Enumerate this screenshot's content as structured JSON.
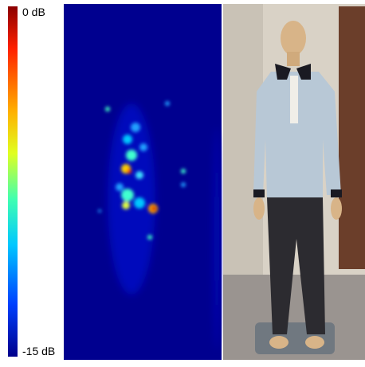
{
  "colorbar": {
    "top_label": "0 dB",
    "bottom_label": "-15 dB"
  }
}
